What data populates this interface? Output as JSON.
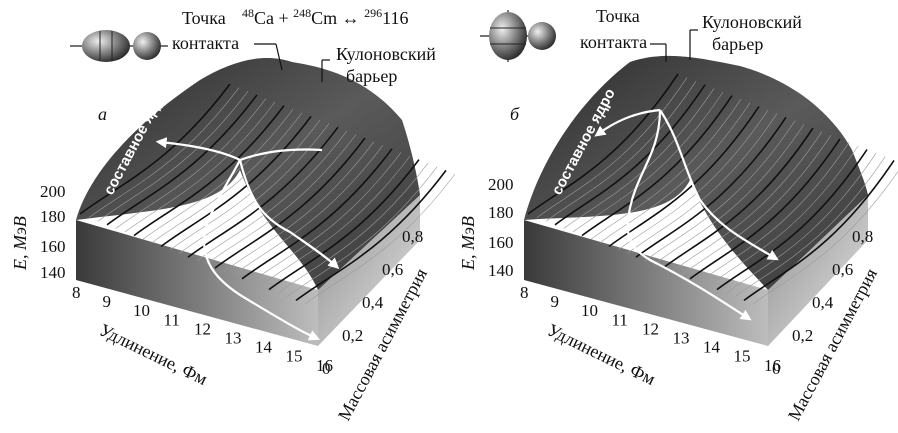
{
  "reaction": {
    "a_mass": "48",
    "a_symbol": "Ca",
    "plus": " + ",
    "b_mass": "248",
    "b_symbol": "Cm",
    "arrow": " ↔ ",
    "c_mass": "296",
    "c_symbol": "116"
  },
  "panels": [
    {
      "letter": "а",
      "contact_line1": "Точка",
      "contact_line2": "контакта",
      "barrier_line1": "Кулоновский",
      "barrier_line2": "барьер",
      "compound": "составное ядро",
      "z_label": "E, МэВ",
      "z_ticks": [
        "200",
        "180",
        "160",
        "140"
      ],
      "x_label": "Удлинение, Фм",
      "x_ticks": [
        "8",
        "9",
        "10",
        "11",
        "12",
        "13",
        "14",
        "15",
        "16"
      ],
      "y_label": "Массовая асимметрия",
      "y_ticks": [
        "0",
        "0,2",
        "0,4",
        "0,6",
        "0,8"
      ]
    },
    {
      "letter": "б",
      "contact_line1": "Точка",
      "contact_line2": "контакта",
      "barrier_line1": "Кулоновский",
      "barrier_line2": "барьер",
      "compound": "составное ядро",
      "z_label": "E, МэВ",
      "z_ticks": [
        "200",
        "180",
        "160",
        "140"
      ],
      "x_label": "Удлинение, Фм",
      "x_ticks": [
        "8",
        "9",
        "10",
        "11",
        "12",
        "13",
        "14",
        "15",
        "16"
      ],
      "y_label": "Массовая асимметрия",
      "y_ticks": [
        "0",
        "0,2",
        "0,4",
        "0,6",
        "0,8"
      ]
    }
  ]
}
